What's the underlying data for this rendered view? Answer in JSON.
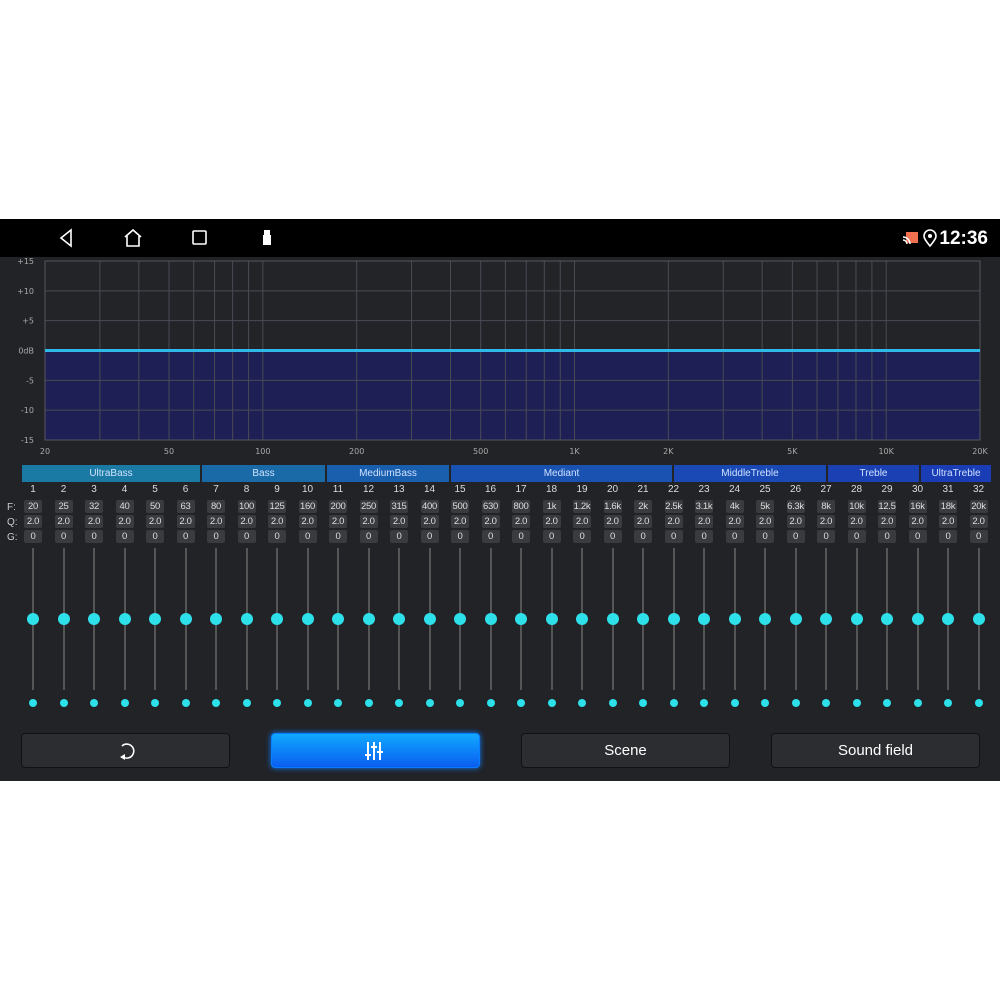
{
  "status_bar": {
    "time": "12:36",
    "icons": [
      "back-icon",
      "home-icon",
      "recents-icon",
      "usb-icon",
      "cast-icon",
      "location-icon"
    ]
  },
  "chart_data": {
    "type": "area",
    "x_scale": "log",
    "xlim": [
      20,
      20000
    ],
    "ylim": [
      -15,
      15
    ],
    "x_tick_labels": [
      "20",
      "50",
      "100",
      "200",
      "500",
      "1K",
      "2K",
      "5K",
      "10K",
      "20K"
    ],
    "x_ticks": [
      20,
      50,
      100,
      200,
      500,
      1000,
      2000,
      5000,
      10000,
      20000
    ],
    "y_tick_labels": [
      "+15",
      "+10",
      "+5",
      "0dB",
      "-5",
      "-10",
      "-15"
    ],
    "y_ticks": [
      15,
      10,
      5,
      0,
      -5,
      -10,
      -15
    ],
    "grid": true,
    "series": [
      {
        "x": [
          20,
          20000
        ],
        "y": [
          0,
          0
        ]
      }
    ],
    "line_color": "#2fb8ea",
    "fill_color": "#1e1f55"
  },
  "bands": [
    {
      "label": "UltraBass"
    },
    {
      "label": "Bass"
    },
    {
      "label": "MediumBass"
    },
    {
      "label": "Mediant"
    },
    {
      "label": "MiddleTreble"
    },
    {
      "label": "Treble"
    },
    {
      "label": "UltraTreble"
    }
  ],
  "row_labels": {
    "f": "F:",
    "q": "Q:",
    "g": "G:"
  },
  "channels": {
    "numbers": [
      "1",
      "2",
      "3",
      "4",
      "5",
      "6",
      "7",
      "8",
      "9",
      "10",
      "11",
      "12",
      "13",
      "14",
      "15",
      "16",
      "17",
      "18",
      "19",
      "20",
      "21",
      "22",
      "23",
      "24",
      "25",
      "26",
      "27",
      "28",
      "29",
      "30",
      "31",
      "32"
    ],
    "freq": [
      "20",
      "25",
      "32",
      "40",
      "50",
      "63",
      "80",
      "100",
      "125",
      "160",
      "200",
      "250",
      "315",
      "400",
      "500",
      "630",
      "800",
      "1k",
      "1.2k",
      "1.6k",
      "2k",
      "2.5k",
      "3.1k",
      "4k",
      "5k",
      "6.3k",
      "8k",
      "10k",
      "12.5",
      "16k",
      "18k",
      "20k"
    ],
    "q": [
      "2.0",
      "2.0",
      "2.0",
      "2.0",
      "2.0",
      "2.0",
      "2.0",
      "2.0",
      "2.0",
      "2.0",
      "2.0",
      "2.0",
      "2.0",
      "2.0",
      "2.0",
      "2.0",
      "2.0",
      "2.0",
      "2.0",
      "2.0",
      "2.0",
      "2.0",
      "2.0",
      "2.0",
      "2.0",
      "2.0",
      "2.0",
      "2.0",
      "2.0",
      "2.0",
      "2.0",
      "2.0"
    ],
    "gain": [
      "0",
      "0",
      "0",
      "0",
      "0",
      "0",
      "0",
      "0",
      "0",
      "0",
      "0",
      "0",
      "0",
      "0",
      "0",
      "0",
      "0",
      "0",
      "0",
      "0",
      "0",
      "0",
      "0",
      "0",
      "0",
      "0",
      "0",
      "0",
      "0",
      "0",
      "0",
      "0"
    ],
    "gain_range": [
      -15,
      15
    ]
  },
  "buttons": {
    "reset_icon": "reset-icon",
    "eq_icon": "equalizer-icon",
    "scene": "Scene",
    "sound_field": "Sound field",
    "accent": "#0a7dff"
  }
}
